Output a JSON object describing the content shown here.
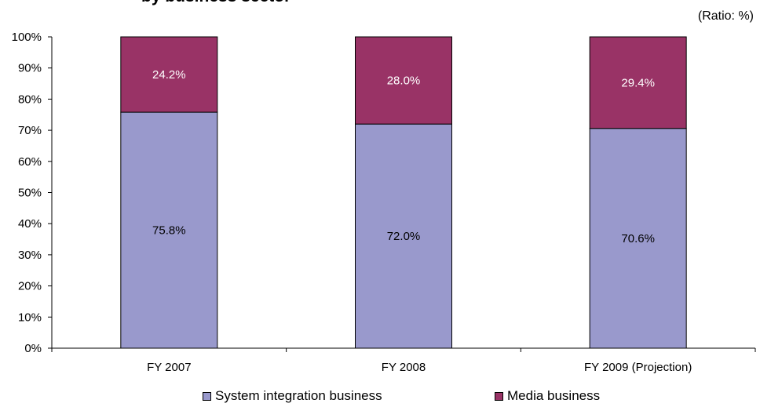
{
  "chart_title": "by business sector",
  "unit_label": "(Ratio: %)",
  "chart_data": {
    "type": "bar",
    "stacked": true,
    "categories": [
      "FY 2007",
      "FY 2008",
      "FY 2009 (Projection)"
    ],
    "series": [
      {
        "name": "System integration business",
        "values": [
          75.8,
          72.0,
          70.6
        ],
        "labels": [
          "75.8%",
          "72.0%",
          "70.6%"
        ],
        "color": "#9999cc",
        "label_color": "#000000"
      },
      {
        "name": "Media business",
        "values": [
          24.2,
          28.0,
          29.4
        ],
        "labels": [
          "24.2%",
          "28.0%",
          "29.4%"
        ],
        "color": "#993366",
        "label_color": "#ffffff"
      }
    ],
    "ylim": [
      0,
      100
    ],
    "yticks": [
      "0%",
      "10%",
      "20%",
      "30%",
      "40%",
      "50%",
      "60%",
      "70%",
      "80%",
      "90%",
      "100%"
    ],
    "grid": false,
    "legend_position": "bottom"
  }
}
